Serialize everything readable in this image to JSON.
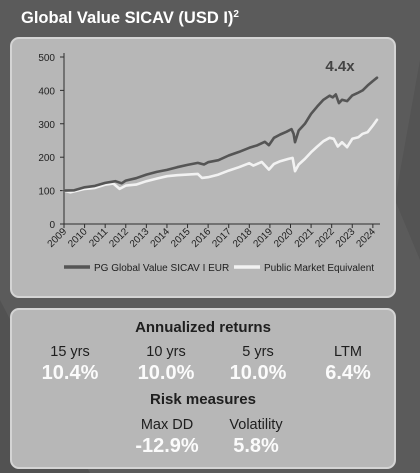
{
  "title": {
    "text": "Global Value SICAV (USD I)",
    "sup": "2"
  },
  "chart_data": {
    "type": "line",
    "x_ticks": [
      "2009",
      "2010",
      "2011",
      "2012",
      "2013",
      "2014",
      "2015",
      "2016",
      "2017",
      "2018",
      "2019",
      "2020",
      "2021",
      "2022",
      "2023",
      "2024"
    ],
    "y_ticks": [
      "0",
      "100",
      "200",
      "300",
      "400",
      "500"
    ],
    "ylim": [
      0,
      500
    ],
    "xlim": [
      2009,
      2024.25
    ],
    "annotation": "4.4x",
    "legend_position": "bottom",
    "series": [
      {
        "name": "PG Global Value SICAV I EUR",
        "color": "#555555",
        "points": [
          [
            2009,
            100
          ],
          [
            2009.5,
            101
          ],
          [
            2010,
            110
          ],
          [
            2010.5,
            114
          ],
          [
            2011,
            123
          ],
          [
            2011.5,
            128
          ],
          [
            2011.8,
            122
          ],
          [
            2012,
            130
          ],
          [
            2012.5,
            137
          ],
          [
            2013,
            148
          ],
          [
            2013.5,
            156
          ],
          [
            2014,
            162
          ],
          [
            2014.5,
            170
          ],
          [
            2015,
            177
          ],
          [
            2015.5,
            183
          ],
          [
            2015.8,
            178
          ],
          [
            2016,
            185
          ],
          [
            2016.5,
            191
          ],
          [
            2017,
            205
          ],
          [
            2017.5,
            216
          ],
          [
            2018,
            228
          ],
          [
            2018.4,
            236
          ],
          [
            2018.75,
            246
          ],
          [
            2018.95,
            236
          ],
          [
            2019.2,
            258
          ],
          [
            2019.5,
            268
          ],
          [
            2019.8,
            276
          ],
          [
            2020.05,
            284
          ],
          [
            2020.15,
            270
          ],
          [
            2020.22,
            245
          ],
          [
            2020.4,
            280
          ],
          [
            2020.7,
            300
          ],
          [
            2021,
            330
          ],
          [
            2021.3,
            352
          ],
          [
            2021.6,
            372
          ],
          [
            2021.9,
            384
          ],
          [
            2022.05,
            379
          ],
          [
            2022.2,
            388
          ],
          [
            2022.35,
            362
          ],
          [
            2022.5,
            372
          ],
          [
            2022.75,
            368
          ],
          [
            2023,
            385
          ],
          [
            2023.25,
            392
          ],
          [
            2023.5,
            400
          ],
          [
            2023.75,
            415
          ],
          [
            2024,
            428
          ],
          [
            2024.2,
            438
          ]
        ]
      },
      {
        "name": "Public Market Equivalent",
        "color": "#f2f2f2",
        "points": [
          [
            2009,
            100
          ],
          [
            2009.3,
            95
          ],
          [
            2009.6,
            99
          ],
          [
            2010,
            105
          ],
          [
            2010.5,
            108
          ],
          [
            2011,
            118
          ],
          [
            2011.4,
            121
          ],
          [
            2011.7,
            105
          ],
          [
            2012,
            115
          ],
          [
            2012.5,
            118
          ],
          [
            2013,
            128
          ],
          [
            2013.5,
            136
          ],
          [
            2014,
            143
          ],
          [
            2014.5,
            146
          ],
          [
            2015,
            148
          ],
          [
            2015.5,
            150
          ],
          [
            2015.7,
            138
          ],
          [
            2016,
            140
          ],
          [
            2016.5,
            148
          ],
          [
            2017,
            160
          ],
          [
            2017.5,
            170
          ],
          [
            2018,
            182
          ],
          [
            2018.2,
            175
          ],
          [
            2018.6,
            186
          ],
          [
            2018.95,
            163
          ],
          [
            2019.2,
            180
          ],
          [
            2019.5,
            188
          ],
          [
            2019.9,
            195
          ],
          [
            2020.1,
            198
          ],
          [
            2020.22,
            158
          ],
          [
            2020.4,
            178
          ],
          [
            2020.7,
            195
          ],
          [
            2021,
            215
          ],
          [
            2021.3,
            232
          ],
          [
            2021.6,
            248
          ],
          [
            2021.9,
            258
          ],
          [
            2022.1,
            255
          ],
          [
            2022.3,
            232
          ],
          [
            2022.5,
            245
          ],
          [
            2022.75,
            230
          ],
          [
            2023,
            255
          ],
          [
            2023.3,
            260
          ],
          [
            2023.5,
            270
          ],
          [
            2023.75,
            275
          ],
          [
            2024,
            295
          ],
          [
            2024.2,
            312
          ]
        ]
      }
    ]
  },
  "returns": {
    "heading": "Annualized returns",
    "items": [
      {
        "label": "15 yrs",
        "value": "10.4%"
      },
      {
        "label": "10 yrs",
        "value": "10.0%"
      },
      {
        "label": "5 yrs",
        "value": "10.0%"
      },
      {
        "label": "LTM",
        "value": "6.4%"
      }
    ]
  },
  "risk": {
    "heading": "Risk measures",
    "items": [
      {
        "label": "Max DD",
        "value": "-12.9%"
      },
      {
        "label": "Volatility",
        "value": "5.8%"
      }
    ]
  }
}
